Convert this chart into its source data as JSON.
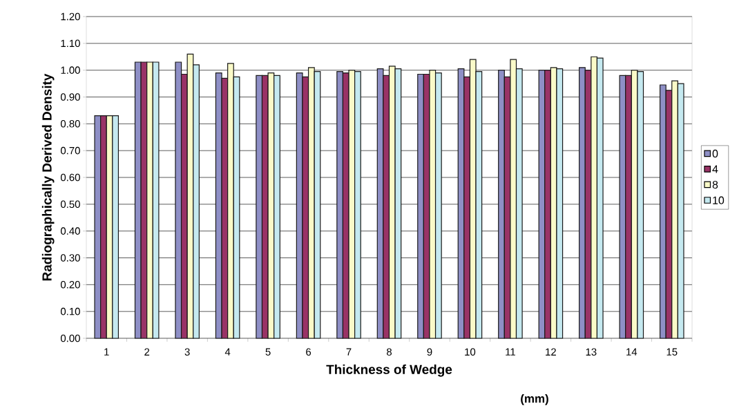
{
  "chart_data": {
    "type": "bar",
    "ylabel": "Radiographically Derived Density",
    "xlabel": "Thickness of Wedge",
    "annotations": [
      "(mm)"
    ],
    "categories": [
      "1",
      "2",
      "3",
      "4",
      "5",
      "6",
      "7",
      "8",
      "9",
      "10",
      "11",
      "12",
      "13",
      "14",
      "15"
    ],
    "series": [
      {
        "name": "0",
        "color": "#8e8fc6",
        "values": [
          0.83,
          1.03,
          1.03,
          0.99,
          0.98,
          0.99,
          0.995,
          1.005,
          0.985,
          1.005,
          1.0,
          1.0,
          1.01,
          0.98,
          0.945
        ]
      },
      {
        "name": "4",
        "color": "#993366",
        "values": [
          0.83,
          1.03,
          0.985,
          0.97,
          0.98,
          0.975,
          0.99,
          0.98,
          0.985,
          0.975,
          0.975,
          1.0,
          1.0,
          0.98,
          0.925
        ]
      },
      {
        "name": "8",
        "color": "#fafac8",
        "values": [
          0.83,
          1.03,
          1.06,
          1.025,
          0.99,
          1.01,
          1.0,
          1.015,
          1.0,
          1.04,
          1.04,
          1.01,
          1.05,
          1.0,
          0.96
        ]
      },
      {
        "name": "10",
        "color": "#c5e9f0",
        "values": [
          0.83,
          1.03,
          1.02,
          0.975,
          0.98,
          0.995,
          0.995,
          1.005,
          0.99,
          0.995,
          1.005,
          1.005,
          1.045,
          0.995,
          0.95
        ]
      }
    ],
    "ylim": [
      0,
      1.2
    ],
    "yticks": [
      {
        "value": 0,
        "label": "0.00"
      },
      {
        "value": 0.1,
        "label": "0.10"
      },
      {
        "value": 0.2,
        "label": "0.20"
      },
      {
        "value": 0.3,
        "label": "0.30"
      },
      {
        "value": 0.4,
        "label": "0.40"
      },
      {
        "value": 0.5,
        "label": "0.50"
      },
      {
        "value": 0.6,
        "label": "0.60"
      },
      {
        "value": 0.7,
        "label": "0.70"
      },
      {
        "value": 0.8,
        "label": "0.80"
      },
      {
        "value": 0.9,
        "label": "0.90"
      },
      {
        "value": 1.0,
        "label": "1.00"
      },
      {
        "value": 1.1,
        "label": "1.10"
      },
      {
        "value": 1.2,
        "label": "1.20"
      }
    ],
    "grid": "y",
    "legend": "right"
  }
}
